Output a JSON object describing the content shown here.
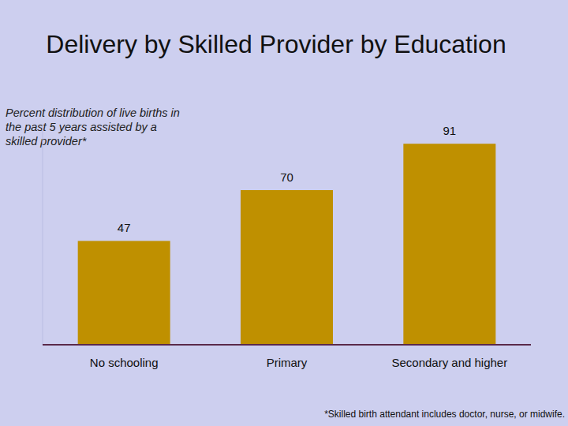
{
  "chart_data": {
    "type": "bar",
    "title": "Delivery by Skilled Provider by Education",
    "subtitle": "Percent distribution of live births in the past 5 years assisted by a skilled provider*",
    "annotations": [
      "*Skilled birth attendant includes doctor, nurse, or midwife."
    ],
    "categories": [
      "No schooling",
      "Primary",
      "Secondary and higher"
    ],
    "values": [
      47,
      70,
      91
    ],
    "color": "#bf9000",
    "ylim": [
      0,
      100
    ],
    "yticks": [],
    "data_labels": true,
    "tick_labels": "x",
    "grid": false
  }
}
